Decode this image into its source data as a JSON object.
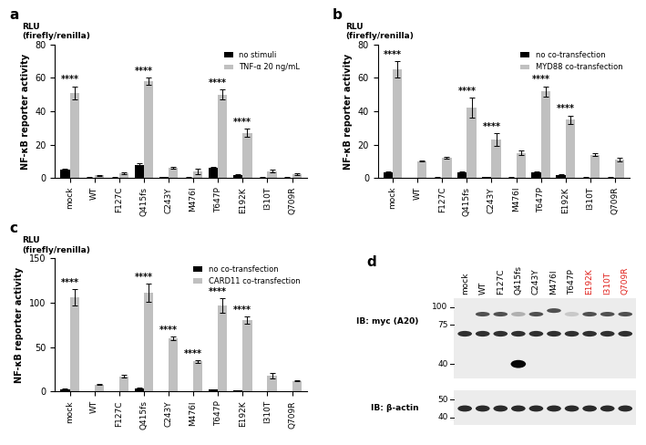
{
  "chart_data": [
    {
      "type": "bar",
      "title": "a",
      "ylabel": "NF-κB reporter activity",
      "annotations": [
        "RLU",
        "(firefly/renilla)"
      ],
      "categories": [
        "mock",
        "WT",
        "F127C",
        "Q415fs",
        "C243Y",
        "M476I",
        "T647P",
        "E192K",
        "I310T",
        "Q709R"
      ],
      "series": [
        {
          "name": "no stimuli",
          "color": "#000000",
          "values": [
            5,
            0.3,
            0.3,
            8,
            0.5,
            0.3,
            6,
            2,
            0.3,
            0.3
          ],
          "errors": [
            0.5,
            0.1,
            0.1,
            0.8,
            0.1,
            0.1,
            0.5,
            0.3,
            0.1,
            0.1
          ]
        },
        {
          "name": "TNF-α 20 ng/mL",
          "color": "#c0c0c0",
          "values": [
            51,
            1.5,
            3,
            58,
            6,
            4,
            50,
            27,
            4,
            2.5
          ],
          "errors": [
            4,
            0.3,
            0.5,
            2,
            0.5,
            1.5,
            3,
            2.5,
            0.8,
            0.5
          ]
        }
      ],
      "significance": [
        "****",
        null,
        null,
        "****",
        null,
        null,
        "****",
        "****",
        null,
        null
      ],
      "ylim": [
        0,
        80
      ],
      "yticks": [
        0,
        20,
        40,
        60,
        80
      ],
      "grid": false,
      "legend": "upper right"
    },
    {
      "type": "bar",
      "title": "b",
      "ylabel": "NF-κB reporter activity",
      "annotations": [
        "RLU",
        "(firefly/renilla)"
      ],
      "categories": [
        "mock",
        "WT",
        "F127C",
        "Q415fs",
        "C243Y",
        "M476I",
        "T647P",
        "E192K",
        "I310T",
        "Q709R"
      ],
      "series": [
        {
          "name": "no co-transfection",
          "color": "#000000",
          "values": [
            3.5,
            0.2,
            0.3,
            3.5,
            0.5,
            0.3,
            3.5,
            1.8,
            0.3,
            0.3
          ],
          "errors": [
            0.4,
            0.1,
            0.1,
            0.4,
            0.1,
            0.1,
            0.4,
            0.3,
            0.1,
            0.1
          ]
        },
        {
          "name": "MYD88 co-transfection",
          "color": "#c0c0c0",
          "values": [
            65,
            10,
            12,
            42,
            23,
            15,
            52,
            35,
            14,
            11
          ],
          "errors": [
            5,
            0.3,
            0.5,
            6,
            4,
            1.5,
            3,
            2.5,
            1,
            1
          ]
        }
      ],
      "significance": [
        "****",
        null,
        null,
        "****",
        "****",
        null,
        "****",
        "****",
        null,
        null
      ],
      "ylim": [
        0,
        80
      ],
      "yticks": [
        0,
        20,
        40,
        60,
        80
      ],
      "grid": false,
      "legend": "upper right"
    },
    {
      "type": "bar",
      "title": "c",
      "ylabel": "NF-κB reporter activity",
      "annotations": [
        "RLU",
        "(firefly/renilla)"
      ],
      "categories": [
        "mock",
        "WT",
        "F127C",
        "Q415fs",
        "C243Y",
        "M476I",
        "T647P",
        "E192K",
        "I310T",
        "Q709R"
      ],
      "series": [
        {
          "name": "no co-transfection",
          "color": "#000000",
          "values": [
            3,
            0.3,
            0.5,
            4,
            0.5,
            0.5,
            2.5,
            1.5,
            0.5,
            0.5
          ],
          "errors": [
            0.5,
            0.1,
            0.1,
            0.6,
            0.1,
            0.1,
            0.5,
            0.3,
            0.1,
            0.1
          ]
        },
        {
          "name": "CARD11 co-transfection",
          "color": "#c0c0c0",
          "values": [
            106,
            8,
            17,
            111,
            60,
            34,
            97,
            80,
            18,
            12
          ],
          "errors": [
            9,
            0.5,
            1.5,
            10,
            2,
            1.5,
            8,
            4,
            3,
            0.5
          ]
        }
      ],
      "significance": [
        "****",
        null,
        null,
        "****",
        "****",
        "****",
        "****",
        "****",
        null,
        null
      ],
      "ylim": [
        0,
        150
      ],
      "yticks": [
        0,
        50,
        100,
        150
      ],
      "grid": false,
      "legend": "upper right"
    }
  ],
  "blot": {
    "title": "d",
    "lanes": [
      {
        "label": "mock",
        "color": "#000000"
      },
      {
        "label": "WT",
        "color": "#000000"
      },
      {
        "label": "F127C",
        "color": "#000000"
      },
      {
        "label": "Q415fs",
        "color": "#000000"
      },
      {
        "label": "C243Y",
        "color": "#000000"
      },
      {
        "label": "M476I",
        "color": "#000000"
      },
      {
        "label": "T647P",
        "color": "#000000"
      },
      {
        "label": "E192K",
        "color": "#e0201b"
      },
      {
        "label": "I310T",
        "color": "#e0201b"
      },
      {
        "label": "Q709R",
        "color": "#e0201b"
      }
    ],
    "panels": [
      {
        "label": "IB: myc (A20)",
        "markers": [
          100,
          75,
          40
        ]
      },
      {
        "label": "IB: β-actin",
        "markers": [
          50,
          40
        ]
      }
    ]
  }
}
